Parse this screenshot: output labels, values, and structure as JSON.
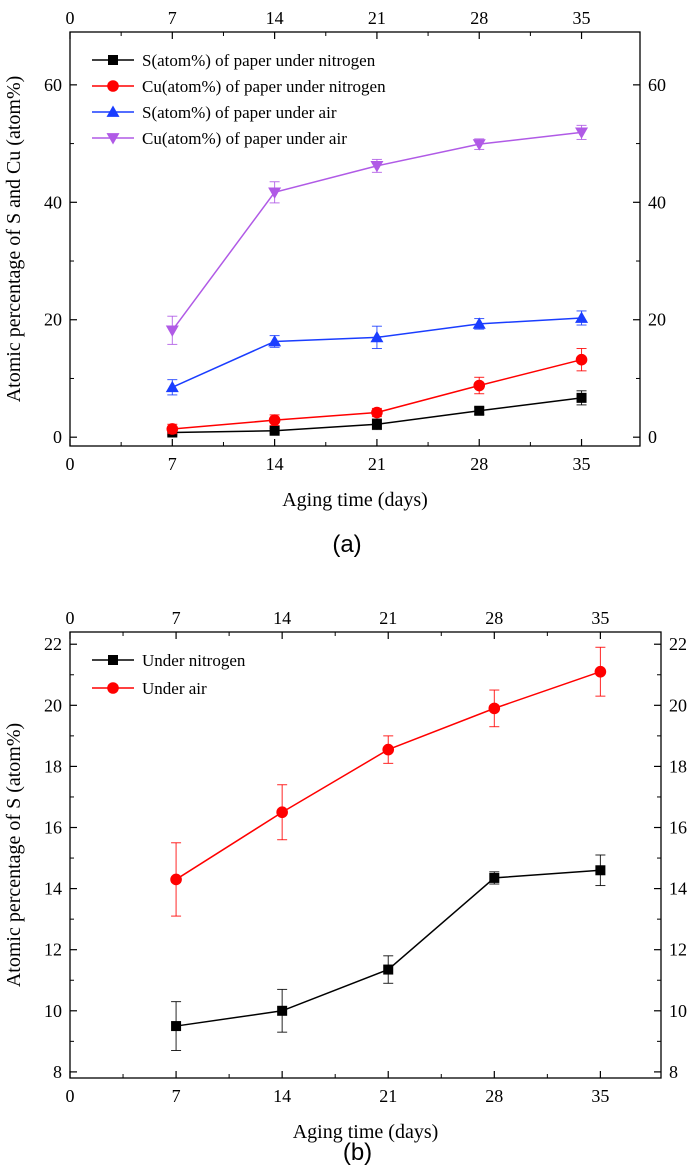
{
  "chart_data": [
    {
      "type": "line",
      "caption": "(a)",
      "xlabel": "Aging time (days)",
      "ylabel": "Atomic percentage of S and Cu (atom%)",
      "xlim": [
        0,
        39
      ],
      "ylim": [
        -1.5,
        69
      ],
      "xticks": [
        0,
        7,
        14,
        21,
        28,
        35
      ],
      "yticks": [
        0,
        20,
        40,
        60
      ],
      "x": [
        7,
        14,
        21,
        28,
        35
      ],
      "mirror_axes": true,
      "legend_position": "top-left",
      "series": [
        {
          "name": "S(atom%) of paper under nitrogen",
          "color": "#000000",
          "marker": "square",
          "values": [
            0.8,
            1.1,
            2.2,
            4.5,
            6.7
          ],
          "errors": [
            0.4,
            0.4,
            0.9,
            0.6,
            1.2
          ]
        },
        {
          "name": "Cu(atom%) of paper under nitrogen",
          "color": "#ff0000",
          "marker": "circle",
          "values": [
            1.4,
            2.9,
            4.2,
            8.8,
            13.2
          ],
          "errors": [
            0.8,
            0.9,
            0.7,
            1.4,
            1.9
          ]
        },
        {
          "name": "S(atom%) of paper under air",
          "color": "#1a3dff",
          "marker": "triangle-up",
          "values": [
            8.5,
            16.3,
            17.0,
            19.3,
            20.3
          ],
          "errors": [
            1.3,
            1.0,
            1.9,
            0.9,
            1.2
          ]
        },
        {
          "name": "Cu(atom%) of paper under air",
          "color": "#b05ae6",
          "marker": "triangle-down",
          "values": [
            18.2,
            41.7,
            46.2,
            49.9,
            51.9
          ],
          "errors": [
            2.4,
            1.8,
            1.1,
            0.9,
            1.2
          ]
        }
      ]
    },
    {
      "type": "line",
      "caption": "(b)",
      "xlabel": "Aging time (days)",
      "ylabel": "Atomic percentage of S (atom%)",
      "xlim": [
        0,
        39
      ],
      "ylim": [
        7.8,
        22.4
      ],
      "xticks": [
        0,
        7,
        14,
        21,
        28,
        35
      ],
      "yticks": [
        8,
        10,
        12,
        14,
        16,
        18,
        20,
        22
      ],
      "x": [
        7,
        14,
        21,
        28,
        35
      ],
      "mirror_axes": true,
      "legend_position": "top-left",
      "series": [
        {
          "name": "Under nitrogen",
          "color": "#000000",
          "marker": "square",
          "values": [
            9.5,
            10.0,
            11.35,
            14.35,
            14.6
          ],
          "errors": [
            0.8,
            0.7,
            0.45,
            0.2,
            0.5
          ]
        },
        {
          "name": "Under air",
          "color": "#ff0000",
          "marker": "circle",
          "values": [
            14.3,
            16.5,
            18.55,
            19.9,
            21.1
          ],
          "errors": [
            1.2,
            0.9,
            0.45,
            0.6,
            0.8
          ]
        }
      ]
    }
  ]
}
